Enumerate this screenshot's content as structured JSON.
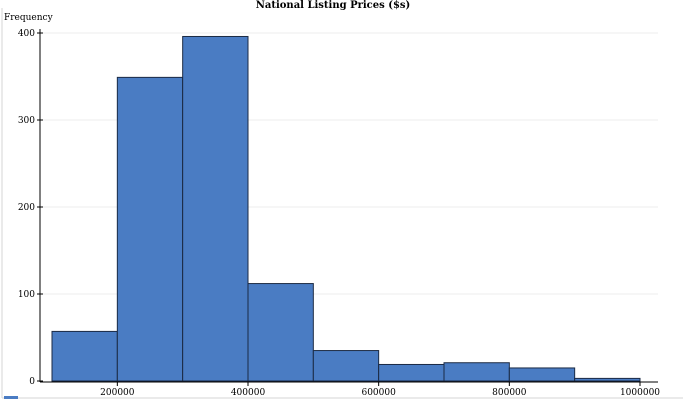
{
  "chart_data": {
    "type": "bar",
    "title": "National Listing Prices ($s)",
    "ylabel": "Frequency",
    "xlabel": "",
    "bins": [
      {
        "start": 100000,
        "end": 200000,
        "value": 57
      },
      {
        "start": 200000,
        "end": 300000,
        "value": 349
      },
      {
        "start": 300000,
        "end": 400000,
        "value": 396
      },
      {
        "start": 400000,
        "end": 500000,
        "value": 112
      },
      {
        "start": 500000,
        "end": 600000,
        "value": 35
      },
      {
        "start": 600000,
        "end": 700000,
        "value": 19
      },
      {
        "start": 700000,
        "end": 800000,
        "value": 21
      },
      {
        "start": 800000,
        "end": 900000,
        "value": 15
      },
      {
        "start": 900000,
        "end": 1000000,
        "value": 3
      }
    ],
    "xlim": [
      100000,
      1000000
    ],
    "ylim": [
      0,
      400
    ],
    "xticks": [
      200000,
      400000,
      600000,
      800000,
      1000000
    ],
    "xtick_labels": [
      "200000",
      "400000",
      "600000",
      "800000",
      "1000000"
    ],
    "yticks": [
      0,
      100,
      200,
      300,
      400
    ],
    "ytick_labels": [
      "0",
      "100",
      "200",
      "300",
      "400"
    ],
    "grid": true,
    "colors": {
      "bar_fill": "#4a7cc3",
      "bar_edge": "#1b2a44",
      "grid": "#ececec"
    }
  }
}
